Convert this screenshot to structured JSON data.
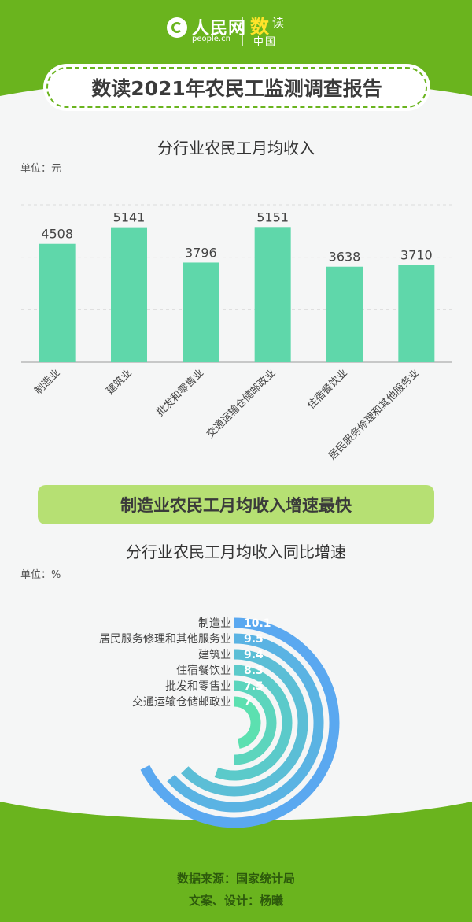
{
  "header": {
    "logo_name": "人民网",
    "logo_url": "people.cn",
    "brand_a": "数",
    "brand_b": "读",
    "brand_c": "中国"
  },
  "title": "数读2021年农民工监测调查报告",
  "sub_banner": "制造业农民工月均收入增速最快",
  "footer": {
    "source": "数据来源：国家统计局",
    "credits": "文案、设计：杨曦"
  },
  "colors": {
    "green": "#6ab41e",
    "bar": "#5fd7aa",
    "ring_outer": "#5aa8f0",
    "ring_inner": "#5ce0b0",
    "banner_light": "#b6e073"
  },
  "chart_data": [
    {
      "type": "bar",
      "title": "分行业农民工月均收入",
      "unit": "单位：元",
      "categories": [
        "制造业",
        "建筑业",
        "批发和零售业",
        "交通运输仓储邮政业",
        "住宿餐饮业",
        "居民服务修理和其他服务业"
      ],
      "values": [
        4508,
        5141,
        3796,
        5151,
        3638,
        3710
      ],
      "ylim": [
        0,
        6000
      ],
      "grid": true
    },
    {
      "type": "radial-bar",
      "title": "分行业农民工月均收入同比增速",
      "unit": "单位：%",
      "categories": [
        "制造业",
        "居民服务修理和其他服务业",
        "建筑业",
        "住宿餐饮业",
        "批发和零售业",
        "交通运输仓储邮政业"
      ],
      "values": [
        10.1,
        9.5,
        9.4,
        8.3,
        7.5,
        7
      ]
    }
  ]
}
